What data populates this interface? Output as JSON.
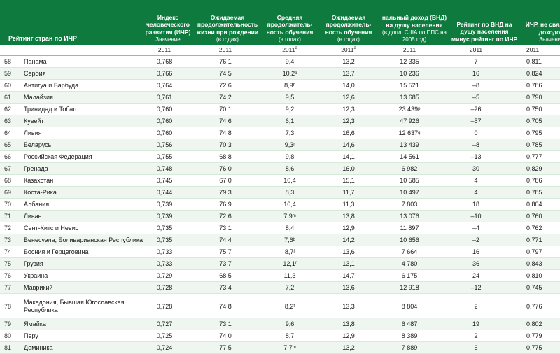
{
  "header": {
    "rank_title": "Рейтинг стран по ИЧР",
    "hdi": {
      "title": "Индекс человеческого развития (ИЧР)",
      "sub": "Значение"
    },
    "life": {
      "title": "Ожидаемая продолжительность жизни при рождении",
      "sub": "(в годах)"
    },
    "mys": {
      "title": "Средняя продолжитель-ность обучения",
      "sub": "(в годах)"
    },
    "eys": {
      "title": "Ожидаемая продолжитель-ность обучения",
      "sub": "(в годах)"
    },
    "gni": {
      "title": "нальный доход (ВНД) на душу населения",
      "sub": "(в долл. США по ППС на 2005 год)"
    },
    "rank_gni": {
      "title": "Рейтинг по ВНД на душу населения минус рейтинг по ИЧР",
      "sub": ""
    },
    "nonincome": {
      "title": "ИЧР, не связанн с доходом",
      "sub": "Значение"
    }
  },
  "years": {
    "hdi": "2011",
    "life": "2011",
    "mys": "2011",
    "mys_sup": "a",
    "eys": "2011",
    "eys_sup": "a",
    "gni": "2011",
    "rank_gni": "2011",
    "nonincome": "2011"
  },
  "rows": [
    {
      "rank": "58",
      "country": "Панама",
      "hdi": "0,768",
      "life": "76,1",
      "mys": "9,4",
      "mys_sup": "",
      "eys": "13,2",
      "gni": "12 335",
      "gni_sup": "",
      "rank_gni": "7",
      "nonincome": "0,811"
    },
    {
      "rank": "59",
      "country": "Сербия",
      "hdi": "0,766",
      "life": "74,5",
      "mys": "10,2",
      "mys_sup": "b",
      "eys": "13,7",
      "gni": "10 236",
      "gni_sup": "",
      "rank_gni": "16",
      "nonincome": "0,824"
    },
    {
      "rank": "60",
      "country": "Антигуа и Барбуда",
      "hdi": "0,764",
      "life": "72,6",
      "mys": "8,9",
      "mys_sup": "h",
      "eys": "14,0",
      "gni": "15 521",
      "gni_sup": "",
      "rank_gni": "–8",
      "nonincome": "0,786"
    },
    {
      "rank": "61",
      "country": "Малайзия",
      "hdi": "0,761",
      "life": "74,2",
      "mys": "9,5",
      "mys_sup": "",
      "eys": "12,6",
      "gni": "13 685",
      "gni_sup": "",
      "rank_gni": "–5",
      "nonincome": "0,790"
    },
    {
      "rank": "62",
      "country": "Тринидад и Тобаго",
      "hdi": "0,760",
      "life": "70,1",
      "mys": "9,2",
      "mys_sup": "",
      "eys": "12,3",
      "gni": "23 439",
      "gni_sup": "p",
      "rank_gni": "–26",
      "nonincome": "0,750"
    },
    {
      "rank": "63",
      "country": "Кувейт",
      "hdi": "0,760",
      "life": "74,6",
      "mys": "6,1",
      "mys_sup": "",
      "eys": "12,3",
      "gni": "47 926",
      "gni_sup": "",
      "rank_gni": "–57",
      "nonincome": "0,705"
    },
    {
      "rank": "64",
      "country": "Ливия",
      "hdi": "0,760",
      "life": "74,8",
      "mys": "7,3",
      "mys_sup": "",
      "eys": "16,6",
      "gni": "12 637",
      "gni_sup": "q",
      "rank_gni": "0",
      "nonincome": "0,795"
    },
    {
      "rank": "65",
      "country": "Беларусь",
      "hdi": "0,756",
      "life": "70,3",
      "mys": "9,3",
      "mys_sup": "r",
      "eys": "14,6",
      "gni": "13 439",
      "gni_sup": "",
      "rank_gni": "–8",
      "nonincome": "0,785"
    },
    {
      "rank": "66",
      "country": "Российская Федерация",
      "hdi": "0,755",
      "life": "68,8",
      "mys": "9,8",
      "mys_sup": "",
      "eys": "14,1",
      "gni": "14 561",
      "gni_sup": "",
      "rank_gni": "–13",
      "nonincome": "0,777"
    },
    {
      "rank": "67",
      "country": "Гренада",
      "hdi": "0,748",
      "life": "76,0",
      "mys": "8,6",
      "mys_sup": "",
      "eys": "16,0",
      "gni": "6 982",
      "gni_sup": "",
      "rank_gni": "30",
      "nonincome": "0,829"
    },
    {
      "rank": "68",
      "country": "Казахстан",
      "hdi": "0,745",
      "life": "67,0",
      "mys": "10,4",
      "mys_sup": "",
      "eys": "15,1",
      "gni": "10 585",
      "gni_sup": "",
      "rank_gni": "4",
      "nonincome": "0,786"
    },
    {
      "rank": "69",
      "country": "Коста-Рика",
      "hdi": "0,744",
      "life": "79,3",
      "mys": "8,3",
      "mys_sup": "",
      "eys": "11,7",
      "gni": "10 497",
      "gni_sup": "",
      "rank_gni": "4",
      "nonincome": "0,785"
    },
    {
      "rank": "70",
      "country": "Албания",
      "hdi": "0,739",
      "life": "76,9",
      "mys": "10,4",
      "mys_sup": "",
      "eys": "11,3",
      "gni": "7 803",
      "gni_sup": "",
      "rank_gni": "18",
      "nonincome": "0,804"
    },
    {
      "rank": "71",
      "country": "Ливан",
      "hdi": "0,739",
      "life": "72,6",
      "mys": "7,9",
      "mys_sup": "m",
      "eys": "13,8",
      "gni": "13 076",
      "gni_sup": "",
      "rank_gni": "–10",
      "nonincome": "0,760"
    },
    {
      "rank": "72",
      "country": "Сент-Китс и Невис",
      "hdi": "0,735",
      "life": "73,1",
      "mys": "8,4",
      "mys_sup": "",
      "eys": "12,9",
      "gni": "11 897",
      "gni_sup": "",
      "rank_gni": "–4",
      "nonincome": "0,762"
    },
    {
      "rank": "73",
      "country": "Венесуэла, Боливарианская Республика",
      "hdi": "0,735",
      "life": "74,4",
      "mys": "7,6",
      "mys_sup": "b",
      "eys": "14,2",
      "gni": "10 656",
      "gni_sup": "",
      "rank_gni": "–2",
      "nonincome": "0,771"
    },
    {
      "rank": "74",
      "country": "Босния и Герцеговина",
      "hdi": "0,733",
      "life": "75,7",
      "mys": "8,7",
      "mys_sup": "f",
      "eys": "13,6",
      "gni": "7 664",
      "gni_sup": "",
      "rank_gni": "16",
      "nonincome": "0,797"
    },
    {
      "rank": "75",
      "country": "Грузия",
      "hdi": "0,733",
      "life": "73,7",
      "mys": "12,1",
      "mys_sup": "f",
      "eys": "13,1",
      "gni": "4 780",
      "gni_sup": "",
      "rank_gni": "36",
      "nonincome": "0,843"
    },
    {
      "rank": "76",
      "country": "Украина",
      "hdi": "0,729",
      "life": "68,5",
      "mys": "11,3",
      "mys_sup": "",
      "eys": "14,7",
      "gni": "6 175",
      "gni_sup": "",
      "rank_gni": "24",
      "nonincome": "0,810"
    },
    {
      "rank": "77",
      "country": "Маврикий",
      "hdi": "0,728",
      "life": "73,4",
      "mys": "7,2",
      "mys_sup": "",
      "eys": "13,6",
      "gni": "12 918",
      "gni_sup": "",
      "rank_gni": "–12",
      "nonincome": "0,745"
    },
    {
      "rank": "78",
      "country": "Македония, Бывшая Югославская Республика",
      "hdi": "0,728",
      "life": "74,8",
      "mys": "8,2",
      "mys_sup": "f",
      "eys": "13,3",
      "gni": "8 804",
      "gni_sup": "",
      "rank_gni": "2",
      "nonincome": "0,776"
    },
    {
      "rank": "79",
      "country": "Ямайка",
      "hdi": "0,727",
      "life": "73,1",
      "mys": "9,6",
      "mys_sup": "",
      "eys": "13,8",
      "gni": "6 487",
      "gni_sup": "",
      "rank_gni": "19",
      "nonincome": "0,802"
    },
    {
      "rank": "80",
      "country": "Перу",
      "hdi": "0,725",
      "life": "74,0",
      "mys": "8,7",
      "mys_sup": "",
      "eys": "12,9",
      "gni": "8 389",
      "gni_sup": "",
      "rank_gni": "2",
      "nonincome": "0,779"
    },
    {
      "rank": "81",
      "country": "Доминика",
      "hdi": "0,724",
      "life": "77,5",
      "mys": "7,7",
      "mys_sup": "m",
      "eys": "13,2",
      "gni": "7 889",
      "gni_sup": "",
      "rank_gni": "6",
      "nonincome": "0,775"
    }
  ]
}
